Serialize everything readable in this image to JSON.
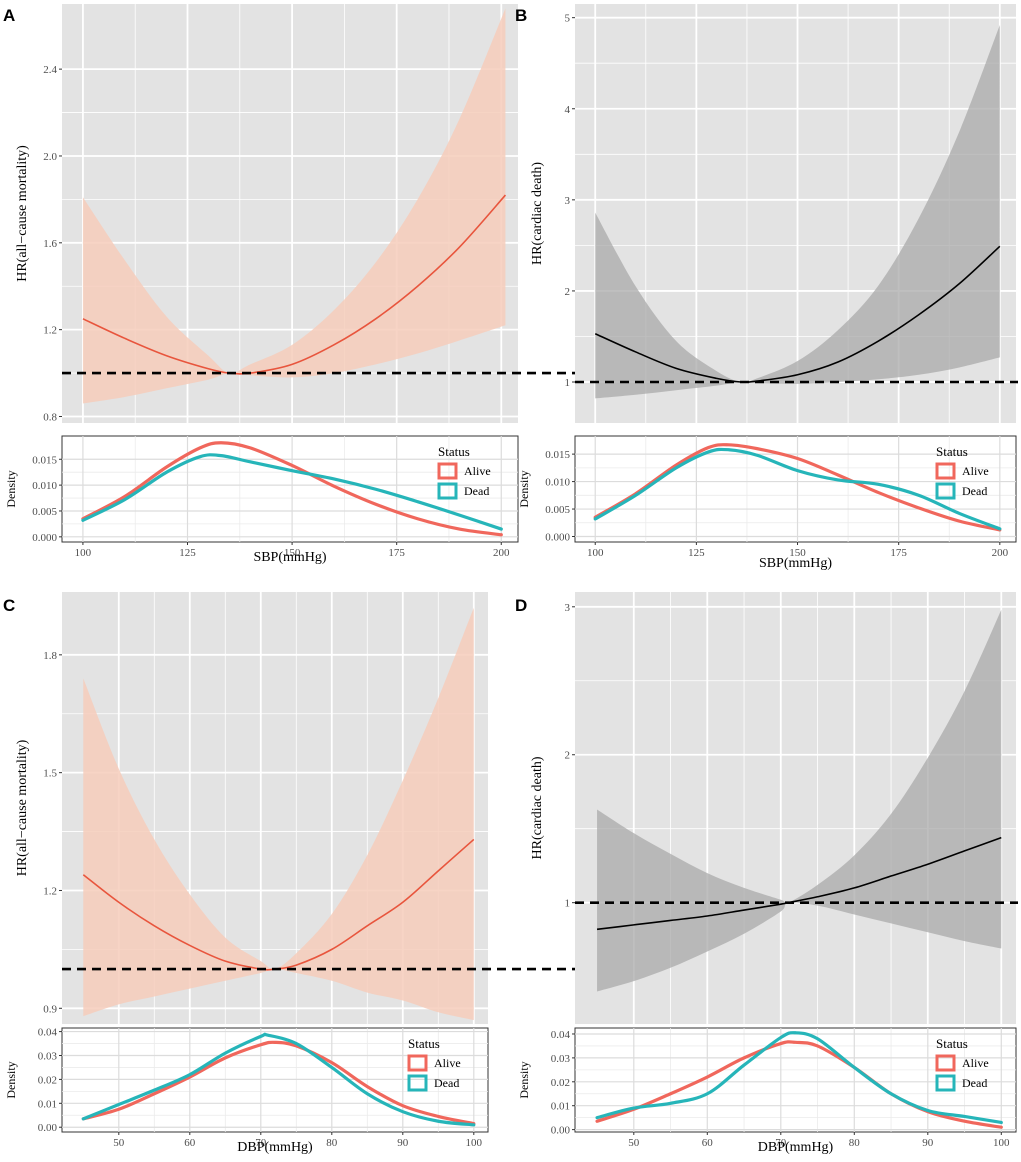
{
  "colors": {
    "panel_bg": "#e3e3e3",
    "grid": "#ffffff",
    "alive": "#f0675c",
    "dead": "#26b5b9",
    "hr_line_red": "#e8553d",
    "band_red": "#f6cdbb",
    "hr_line_black": "#000000",
    "band_grey": "#aaaaaa"
  },
  "chart_data": [
    {
      "panel": "A",
      "type": "line",
      "ylabel": "HR(all−cause mortality)",
      "xlabel": "SBP(mmHg)",
      "x_ticks": [
        100,
        125,
        150,
        175,
        200
      ],
      "x_tick_labels": [
        "100",
        "125",
        "150",
        "175",
        "200"
      ],
      "xlim": [
        95,
        204
      ],
      "hr": {
        "ylim": [
          0.77,
          2.7
        ],
        "y_ticks": [
          0.8,
          1.2,
          1.6,
          2.0,
          2.4
        ],
        "y_tick_labels": [
          "0.8",
          "1.2",
          "1.6",
          "2.0",
          "2.4"
        ],
        "reference": 1.0,
        "line_color": "#e8553d",
        "band_color": "#f6cdbb",
        "x": [
          100,
          110,
          120,
          130,
          135,
          140,
          150,
          160,
          170,
          180,
          190,
          201
        ],
        "y": [
          1.25,
          1.16,
          1.08,
          1.02,
          1.0,
          1.0,
          1.04,
          1.13,
          1.25,
          1.4,
          1.58,
          1.82
        ],
        "lower": [
          0.86,
          0.89,
          0.93,
          0.97,
          1.0,
          0.99,
          0.98,
          1.0,
          1.04,
          1.09,
          1.15,
          1.22
        ],
        "upper": [
          1.81,
          1.52,
          1.26,
          1.08,
          1.0,
          1.04,
          1.13,
          1.29,
          1.51,
          1.8,
          2.17,
          2.68
        ]
      },
      "density": {
        "ylim": [
          -0.001,
          0.0195
        ],
        "y_ticks": [
          0.0,
          0.005,
          0.01,
          0.015
        ],
        "y_tick_labels": [
          "0.000",
          "0.005",
          "0.010",
          "0.015"
        ],
        "ylabel": "Density",
        "legend_title": "Status",
        "series": [
          {
            "name": "Alive",
            "color": "#f0675c",
            "x": [
              100,
              110,
              120,
              128,
              133,
              140,
              150,
              160,
              170,
              180,
              190,
              200
            ],
            "y": [
              0.0035,
              0.0078,
              0.0135,
              0.0172,
              0.0182,
              0.0172,
              0.0138,
              0.0098,
              0.0063,
              0.0035,
              0.0015,
              0.0004
            ]
          },
          {
            "name": "Dead",
            "color": "#26b5b9",
            "x": [
              100,
              110,
              120,
              128,
              133,
              140,
              150,
              160,
              170,
              180,
              190,
              200
            ],
            "y": [
              0.0032,
              0.0072,
              0.0125,
              0.0155,
              0.0157,
              0.0145,
              0.0128,
              0.0112,
              0.0092,
              0.0068,
              0.0042,
              0.0015
            ]
          }
        ]
      }
    },
    {
      "panel": "B",
      "type": "line",
      "ylabel": "HR(cardiac death)",
      "xlabel": "SBP(mmHg)",
      "x_ticks": [
        100,
        125,
        150,
        175,
        200
      ],
      "x_tick_labels": [
        "100",
        "125",
        "150",
        "175",
        "200"
      ],
      "xlim": [
        95,
        204
      ],
      "hr": {
        "ylim": [
          0.55,
          5.15
        ],
        "y_ticks": [
          1,
          2,
          3,
          4,
          5
        ],
        "y_tick_labels": [
          "1",
          "2",
          "3",
          "4",
          "5"
        ],
        "reference": 1.0,
        "line_color": "#000000",
        "band_color": "#aaaaaa",
        "x": [
          100,
          110,
          120,
          130,
          136,
          140,
          150,
          160,
          170,
          180,
          190,
          200
        ],
        "y": [
          1.53,
          1.33,
          1.15,
          1.04,
          1.0,
          1.01,
          1.08,
          1.22,
          1.45,
          1.74,
          2.08,
          2.49
        ],
        "lower": [
          0.82,
          0.86,
          0.91,
          0.96,
          1.0,
          0.99,
          0.98,
          1.0,
          1.03,
          1.08,
          1.16,
          1.27
        ],
        "upper": [
          2.86,
          2.05,
          1.45,
          1.12,
          1.0,
          1.04,
          1.23,
          1.57,
          2.06,
          2.8,
          3.75,
          4.92
        ]
      },
      "density": {
        "ylim": [
          -0.001,
          0.0183
        ],
        "y_ticks": [
          0.0,
          0.005,
          0.01,
          0.015
        ],
        "y_tick_labels": [
          "0.000",
          "0.005",
          "0.010",
          "0.015"
        ],
        "ylabel": "Density",
        "legend_title": "Status",
        "series": [
          {
            "name": "Alive",
            "color": "#f0675c",
            "x": [
              100,
              110,
              120,
              128,
              133,
              140,
              150,
              160,
              170,
              180,
              190,
              200
            ],
            "y": [
              0.0035,
              0.0078,
              0.013,
              0.0162,
              0.0167,
              0.016,
              0.0142,
              0.0112,
              0.008,
              0.0052,
              0.0028,
              0.0012
            ]
          },
          {
            "name": "Dead",
            "color": "#26b5b9",
            "x": [
              100,
              110,
              120,
              128,
              133,
              140,
              150,
              160,
              170,
              180,
              190,
              200
            ],
            "y": [
              0.0032,
              0.0075,
              0.0125,
              0.0154,
              0.0158,
              0.0148,
              0.012,
              0.0103,
              0.0095,
              0.0075,
              0.0042,
              0.0014
            ]
          }
        ]
      }
    },
    {
      "panel": "C",
      "type": "line",
      "ylabel": "HR(all−cause mortality)",
      "xlabel": "DBP(mmHg)",
      "x_ticks": [
        50,
        60,
        70,
        80,
        90,
        100
      ],
      "x_tick_labels": [
        "50",
        "60",
        "70",
        "80",
        "90",
        "100"
      ],
      "xlim": [
        42,
        102
      ],
      "hr": {
        "ylim": [
          0.86,
          1.96
        ],
        "y_ticks": [
          0.9,
          1.2,
          1.5,
          1.8
        ],
        "y_tick_labels": [
          "0.9",
          "1.2",
          "1.5",
          "1.8"
        ],
        "reference": 1.0,
        "line_color": "#e8553d",
        "band_color": "#f6cdbb",
        "x": [
          45,
          50,
          55,
          60,
          65,
          70,
          72,
          75,
          80,
          85,
          90,
          95,
          100
        ],
        "y": [
          1.24,
          1.17,
          1.11,
          1.06,
          1.02,
          1.0,
          1.0,
          1.01,
          1.05,
          1.11,
          1.17,
          1.25,
          1.33
        ],
        "lower": [
          0.88,
          0.91,
          0.93,
          0.95,
          0.97,
          0.99,
          1.0,
          0.99,
          0.97,
          0.94,
          0.92,
          0.89,
          0.87
        ],
        "upper": [
          1.74,
          1.51,
          1.33,
          1.19,
          1.08,
          1.02,
          1.0,
          1.04,
          1.14,
          1.29,
          1.48,
          1.69,
          1.92
        ]
      },
      "density": {
        "ylim": [
          -0.002,
          0.0415
        ],
        "y_ticks": [
          0.0,
          0.01,
          0.02,
          0.03,
          0.04
        ],
        "y_tick_labels": [
          "0.00",
          "0.01",
          "0.02",
          "0.03",
          "0.04"
        ],
        "ylabel": "Density",
        "legend_title": "Status",
        "series": [
          {
            "name": "Alive",
            "color": "#f0675c",
            "x": [
              45,
              50,
              55,
              60,
              65,
              70,
              72,
              75,
              80,
              85,
              90,
              95,
              100
            ],
            "y": [
              0.0035,
              0.0075,
              0.014,
              0.021,
              0.029,
              0.0345,
              0.0355,
              0.034,
              0.027,
              0.017,
              0.009,
              0.0045,
              0.0015
            ]
          },
          {
            "name": "Dead",
            "color": "#26b5b9",
            "x": [
              45,
              50,
              55,
              60,
              65,
              70,
              71,
              75,
              80,
              85,
              90,
              95,
              100
            ],
            "y": [
              0.0035,
              0.0095,
              0.0155,
              0.022,
              0.031,
              0.038,
              0.0385,
              0.035,
              0.025,
              0.014,
              0.0065,
              0.0025,
              0.001
            ]
          }
        ]
      }
    },
    {
      "panel": "D",
      "type": "line",
      "ylabel": "HR(cardiac death)",
      "xlabel": "DBP(mmHg)",
      "x_ticks": [
        50,
        60,
        70,
        80,
        90,
        100
      ],
      "x_tick_labels": [
        "50",
        "60",
        "70",
        "80",
        "90",
        "100"
      ],
      "xlim": [
        42,
        102
      ],
      "hr": {
        "ylim": [
          0.18,
          3.1
        ],
        "y_ticks": [
          1,
          2,
          3
        ],
        "y_tick_labels": [
          "1",
          "2",
          "3"
        ],
        "reference": 1.0,
        "line_color": "#000000",
        "band_color": "#aaaaaa",
        "x": [
          45,
          50,
          55,
          60,
          65,
          70,
          71,
          75,
          80,
          85,
          90,
          95,
          100
        ],
        "y": [
          0.82,
          0.85,
          0.88,
          0.91,
          0.95,
          0.99,
          1.0,
          1.04,
          1.1,
          1.18,
          1.26,
          1.35,
          1.44
        ],
        "lower": [
          0.4,
          0.47,
          0.56,
          0.67,
          0.79,
          0.94,
          1.0,
          0.98,
          0.92,
          0.86,
          0.8,
          0.74,
          0.69
        ],
        "upper": [
          1.63,
          1.47,
          1.33,
          1.2,
          1.1,
          1.02,
          1.0,
          1.12,
          1.32,
          1.6,
          1.98,
          2.43,
          2.98
        ]
      },
      "density": {
        "ylim": [
          -0.001,
          0.0425
        ],
        "y_ticks": [
          0.0,
          0.01,
          0.02,
          0.03,
          0.04
        ],
        "y_tick_labels": [
          "0.00",
          "0.01",
          "0.02",
          "0.03",
          "0.04"
        ],
        "ylabel": "Density",
        "legend_title": "Status",
        "series": [
          {
            "name": "Alive",
            "color": "#f0675c",
            "x": [
              45,
              50,
              55,
              60,
              65,
              70,
              72,
              75,
              80,
              85,
              90,
              95,
              100
            ],
            "y": [
              0.0035,
              0.0085,
              0.015,
              0.022,
              0.03,
              0.036,
              0.0365,
              0.035,
              0.026,
              0.015,
              0.0075,
              0.0035,
              0.001
            ]
          },
          {
            "name": "Dead",
            "color": "#26b5b9",
            "x": [
              45,
              50,
              55,
              60,
              65,
              70,
              72,
              75,
              80,
              85,
              90,
              95,
              100
            ],
            "y": [
              0.005,
              0.009,
              0.011,
              0.015,
              0.027,
              0.0385,
              0.0405,
              0.038,
              0.026,
              0.015,
              0.008,
              0.0055,
              0.003
            ]
          }
        ]
      }
    }
  ]
}
